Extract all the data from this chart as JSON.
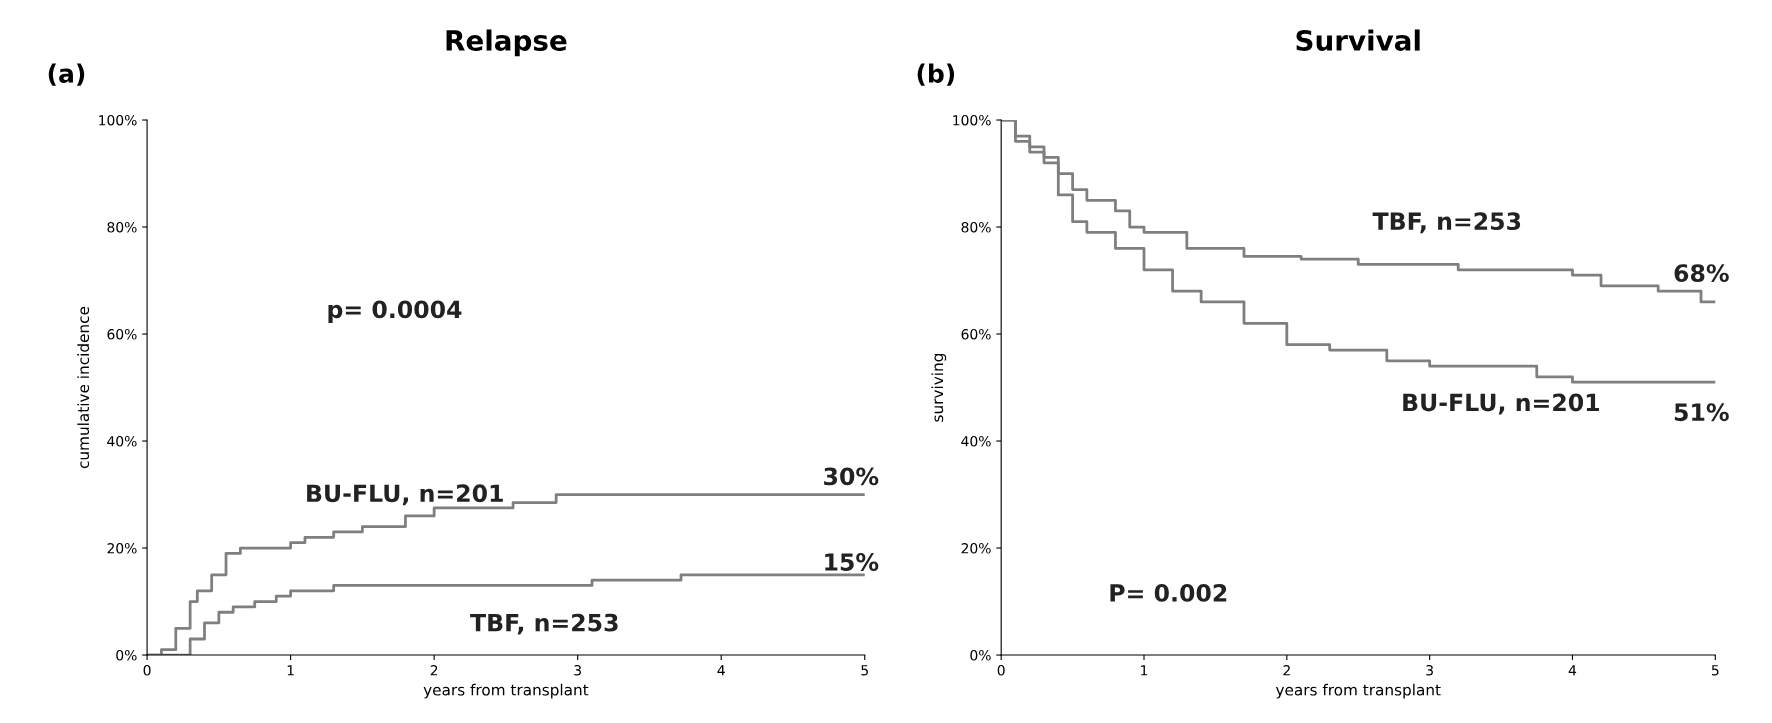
{
  "chart_data": [
    {
      "type": "step",
      "title": "Relapse",
      "xlabel": "years from transplant",
      "ylabel": "cumulative incidence",
      "xlim": [
        0,
        5
      ],
      "xticks": [
        0,
        1,
        2,
        3,
        4,
        5
      ],
      "ylim": [
        0,
        100
      ],
      "yticks": [
        {
          "value": 0,
          "label": "0%"
        },
        {
          "value": 20,
          "label": "20%"
        },
        {
          "value": 40,
          "label": "40%"
        },
        {
          "value": 60,
          "label": "60%"
        },
        {
          "value": 80,
          "label": "80%"
        },
        {
          "value": 100,
          "label": "100%"
        }
      ],
      "grid": false,
      "legend": false,
      "marker": "none",
      "line_style": "solid",
      "annotations": [
        "(a)",
        "p= 0.0004",
        "30%",
        "15%"
      ],
      "series": [
        {
          "name": "BU-FLU, n=201",
          "color": "#7f7f7f",
          "x": [
            0,
            0.1,
            0.2,
            0.3,
            0.35,
            0.45,
            0.55,
            0.65,
            1.0,
            1.1,
            1.3,
            1.5,
            1.8,
            2.0,
            2.55,
            2.85,
            5
          ],
          "values": [
            0,
            1,
            5,
            10,
            12,
            15,
            19,
            20,
            21,
            22,
            23,
            24,
            26,
            27.5,
            28.5,
            30,
            30
          ]
        },
        {
          "name": "TBF, n=253",
          "color": "#7f7f7f",
          "x": [
            0,
            0.2,
            0.3,
            0.4,
            0.5,
            0.6,
            0.75,
            0.9,
            1.0,
            1.3,
            3.1,
            3.72,
            5
          ],
          "values": [
            0,
            0,
            3,
            6,
            8,
            9,
            10,
            11,
            12,
            13,
            14,
            15,
            15
          ]
        }
      ]
    },
    {
      "type": "step",
      "title": "Survival",
      "xlabel": "years from transplant",
      "ylabel": "surviving",
      "xlim": [
        0,
        5
      ],
      "xticks": [
        0,
        1,
        2,
        3,
        4,
        5
      ],
      "ylim": [
        0,
        100
      ],
      "yticks": [
        {
          "value": 0,
          "label": "0%"
        },
        {
          "value": 20,
          "label": "20%"
        },
        {
          "value": 40,
          "label": "40%"
        },
        {
          "value": 60,
          "label": "60%"
        },
        {
          "value": 80,
          "label": "80%"
        },
        {
          "value": 100,
          "label": "100%"
        }
      ],
      "grid": false,
      "legend": false,
      "marker": "none",
      "line_style": "solid",
      "annotations": [
        "(b)",
        "P= 0.002",
        "68%",
        "51%"
      ],
      "series": [
        {
          "name": "TBF, n=253",
          "color": "#7f7f7f",
          "x": [
            0,
            0.1,
            0.2,
            0.3,
            0.4,
            0.5,
            0.6,
            0.8,
            0.9,
            1.0,
            1.3,
            1.7,
            2.1,
            2.5,
            3.2,
            4.0,
            4.2,
            4.6,
            4.9,
            5
          ],
          "values": [
            100,
            97,
            95,
            93,
            90,
            87,
            85,
            83,
            80,
            79,
            76,
            74.5,
            74,
            73,
            72,
            71,
            69,
            68,
            66,
            66
          ]
        },
        {
          "name": "BU-FLU, n=201",
          "color": "#7f7f7f",
          "x": [
            0,
            0.1,
            0.2,
            0.3,
            0.4,
            0.5,
            0.6,
            0.8,
            1.0,
            1.2,
            1.4,
            1.7,
            2.0,
            2.3,
            2.7,
            3.0,
            3.75,
            4.0,
            5
          ],
          "values": [
            100,
            96,
            94,
            92,
            86,
            81,
            79,
            76,
            72,
            68,
            66,
            62,
            58,
            57,
            55,
            54,
            52,
            51,
            51
          ]
        }
      ]
    }
  ]
}
